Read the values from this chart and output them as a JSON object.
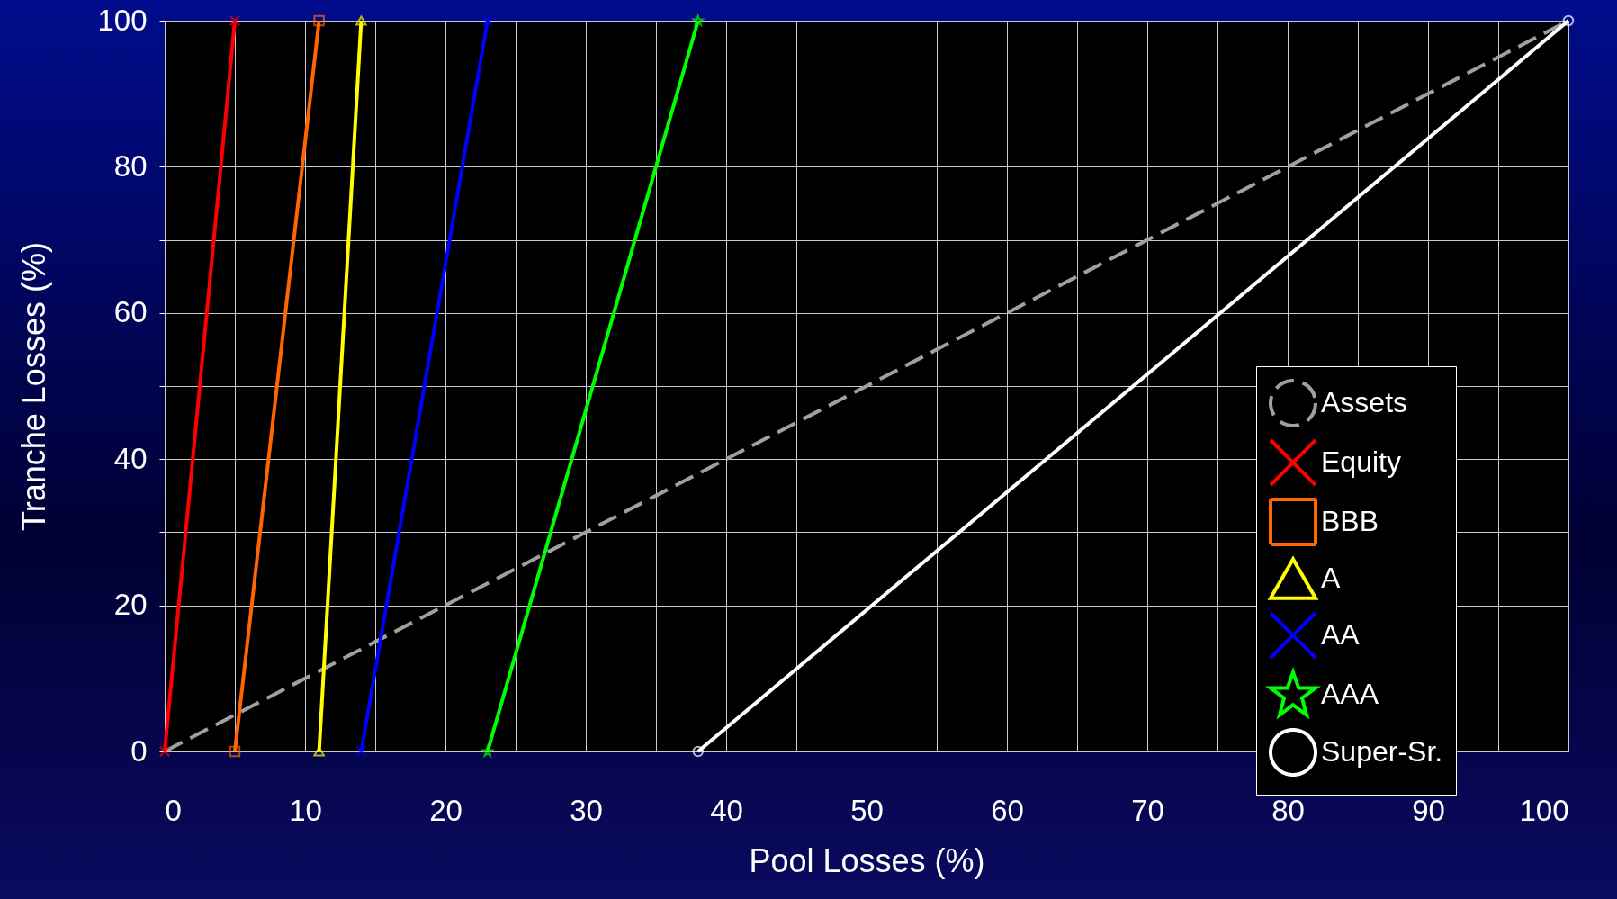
{
  "chart_data": {
    "type": "line",
    "xlabel": "Pool Losses (%)",
    "ylabel": "Tranche Losses (%)",
    "xlim": [
      0,
      100
    ],
    "ylim": [
      0,
      100
    ],
    "xticks": [
      0,
      {
        "value": 5,
        "label": null
      },
      10,
      {
        "value": 15,
        "label": null
      },
      20,
      {
        "value": 25,
        "label": null
      },
      30,
      {
        "value": 35,
        "label": null
      },
      40,
      {
        "value": 45,
        "label": null
      },
      50,
      {
        "value": 55,
        "label": null
      },
      60,
      {
        "value": 65,
        "label": null
      },
      70,
      {
        "value": 75,
        "label": null
      },
      80,
      {
        "value": 85,
        "label": null
      },
      90,
      {
        "value": 95,
        "label": null
      },
      100
    ],
    "yticks": [
      0,
      {
        "value": 10,
        "label": null
      },
      20,
      {
        "value": 30,
        "label": null
      },
      40,
      {
        "value": 50,
        "label": null
      },
      60,
      {
        "value": 70,
        "label": null
      },
      80,
      {
        "value": 90,
        "label": null
      },
      100
    ],
    "grid": true,
    "legend": "bottom right",
    "series": [
      {
        "name": "Assets",
        "color": "#a0a0a0",
        "x": [
          0,
          100
        ],
        "values": [
          0,
          100
        ],
        "marker": "none",
        "line_style": "dashed"
      },
      {
        "name": "Equity",
        "color": "#ff0000",
        "x": [
          0,
          5
        ],
        "values": [
          0,
          100
        ],
        "marker": "cross",
        "line_style": "solid"
      },
      {
        "name": "BBB",
        "color": "#ff6600",
        "x": [
          5,
          11
        ],
        "values": [
          0,
          100
        ],
        "marker": "square",
        "line_style": "solid"
      },
      {
        "name": "A",
        "color": "#ffff00",
        "x": [
          11,
          14
        ],
        "values": [
          0,
          100
        ],
        "marker": "triangle",
        "line_style": "solid"
      },
      {
        "name": "AA",
        "color": "#0000ff",
        "x": [
          14,
          23
        ],
        "values": [
          0,
          100
        ],
        "marker": "cross",
        "line_style": "solid"
      },
      {
        "name": "AAA",
        "color": "#00ff00",
        "x": [
          23,
          38
        ],
        "values": [
          0,
          100
        ],
        "marker": "star",
        "line_style": "solid"
      },
      {
        "name": "Super-Sr.",
        "color": "#ffffff",
        "x": [
          38,
          100
        ],
        "values": [
          0,
          100
        ],
        "marker": "circle",
        "line_style": "solid"
      }
    ]
  }
}
